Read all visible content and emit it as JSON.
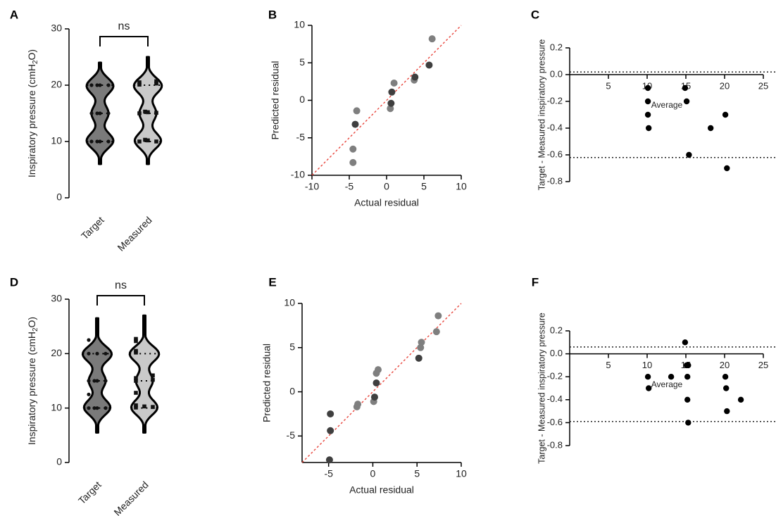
{
  "chart_data": [
    {
      "panel": "A",
      "type": "violin",
      "ylabel": "Inspiratory pressure (cmH2O)",
      "categories": [
        "Target",
        "Measured"
      ],
      "ylim": [
        0,
        30
      ],
      "yticks": [
        0,
        10,
        20,
        30
      ],
      "significance": "ns",
      "colors": [
        "#7a7a7a",
        "#c9c9c9"
      ],
      "violin_range": [
        [
          6,
          24
        ],
        [
          6,
          25
        ]
      ],
      "violin_median": [
        15,
        15
      ],
      "violin_quartiles": [
        [
          10,
          20
        ],
        [
          10,
          20
        ]
      ],
      "points": [
        [
          10,
          10,
          10,
          10,
          15,
          15,
          15,
          15,
          20,
          20,
          20,
          20
        ],
        [
          10,
          10,
          10.2,
          10.3,
          15,
          15.1,
          15.2,
          15.3,
          20.1,
          20.3,
          20.5,
          20.7
        ]
      ]
    },
    {
      "panel": "B",
      "type": "scatter",
      "xlabel": "Actual residual",
      "ylabel": "Predicted residual",
      "xlim": [
        -10,
        10
      ],
      "ylim": [
        -10,
        10
      ],
      "xticks": [
        -10,
        -5,
        0,
        5,
        10
      ],
      "yticks": [
        -10,
        -5,
        0,
        5,
        10
      ],
      "identity_line": true,
      "series": [
        {
          "color": "#7f7f7f",
          "x": [
            -4.5,
            -4.5,
            -4.0,
            0.5,
            1.0,
            3.7,
            6.1
          ],
          "y": [
            -8.3,
            -6.5,
            -1.4,
            -1.1,
            2.3,
            2.7,
            8.2
          ]
        },
        {
          "color": "#3f3f3f",
          "x": [
            -4.2,
            0.6,
            0.7,
            3.8,
            5.7
          ],
          "y": [
            -3.2,
            -0.4,
            1.1,
            3.1,
            4.7
          ]
        }
      ]
    },
    {
      "panel": "C",
      "type": "scatter",
      "xlabel": "Average",
      "ylabel": "Target - Measured inspiratory pressure",
      "xlim": [
        0,
        25
      ],
      "ylim": [
        -0.8,
        0.2
      ],
      "xticks": [
        5,
        10,
        15,
        20,
        25
      ],
      "yticks": [
        0.2,
        0.0,
        -0.2,
        -0.4,
        -0.6,
        -0.8
      ],
      "limits_of_agreement": [
        0.02,
        -0.62
      ],
      "x": [
        10.1,
        10.1,
        10.1,
        10.2,
        14.9,
        15.1,
        15.4,
        18.2,
        20.1,
        20.3
      ],
      "y": [
        -0.1,
        -0.2,
        -0.3,
        -0.4,
        -0.1,
        -0.2,
        -0.6,
        -0.4,
        -0.3,
        -0.7
      ]
    },
    {
      "panel": "D",
      "type": "violin",
      "ylabel": "Inspiratory pressure (cmH2O)",
      "categories": [
        "Target",
        "Measured"
      ],
      "ylim": [
        0,
        30
      ],
      "yticks": [
        0,
        10,
        20,
        30
      ],
      "significance": "ns",
      "colors": [
        "#7a7a7a",
        "#c9c9c9"
      ],
      "violin_range": [
        [
          5.5,
          26.5
        ],
        [
          5.5,
          27
        ]
      ],
      "violin_median": [
        15,
        15
      ],
      "violin_quartiles": [
        [
          10,
          20
        ],
        [
          10,
          20
        ]
      ],
      "points": [
        [
          10,
          10,
          10,
          10,
          12.5,
          15,
          15,
          15,
          15,
          20,
          20,
          20,
          22.5
        ],
        [
          10.1,
          10.2,
          10.3,
          10.5,
          12.8,
          15,
          15.2,
          15.5,
          16,
          20.2,
          20.5,
          22.3,
          22.7
        ]
      ]
    },
    {
      "panel": "E",
      "type": "scatter",
      "xlabel": "Actual residual",
      "ylabel": "Predicted residual",
      "xlim": [
        -8,
        10
      ],
      "ylim": [
        -8,
        10
      ],
      "xticks": [
        -5,
        0,
        5,
        10
      ],
      "yticks": [
        -5,
        0,
        5,
        10
      ],
      "identity_line": true,
      "series": [
        {
          "color": "#7f7f7f",
          "x": [
            -1.8,
            -1.7,
            0.1,
            0.4,
            0.6,
            5.4,
            5.5,
            7.2,
            7.4
          ],
          "y": [
            -1.7,
            -1.4,
            -1.1,
            2.1,
            2.5,
            5.0,
            5.6,
            6.8,
            8.6
          ]
        },
        {
          "color": "#3f3f3f",
          "x": [
            -4.9,
            -4.8,
            -4.8,
            0.2,
            0.4,
            5.2
          ],
          "y": [
            -7.7,
            -4.4,
            -2.5,
            -0.6,
            1.0,
            3.8
          ]
        }
      ]
    },
    {
      "panel": "F",
      "type": "scatter",
      "xlabel": "Average",
      "ylabel": "Target - Measured inspiratory pressure",
      "xlim": [
        0,
        25
      ],
      "ylim": [
        -0.8,
        0.2
      ],
      "xticks": [
        5,
        10,
        15,
        20,
        25
      ],
      "yticks": [
        0.2,
        0.0,
        -0.2,
        -0.4,
        -0.6,
        -0.8
      ],
      "limits_of_agreement": [
        0.06,
        -0.59
      ],
      "x": [
        10.1,
        10.2,
        13.1,
        14.9,
        15.1,
        15.2,
        15.2,
        15.3,
        15.3,
        20.1,
        20.2,
        20.3,
        22.1
      ],
      "y": [
        -0.2,
        -0.3,
        -0.2,
        0.1,
        -0.1,
        -0.2,
        -0.4,
        -0.1,
        -0.6,
        -0.2,
        -0.3,
        -0.5,
        -0.4
      ]
    }
  ]
}
